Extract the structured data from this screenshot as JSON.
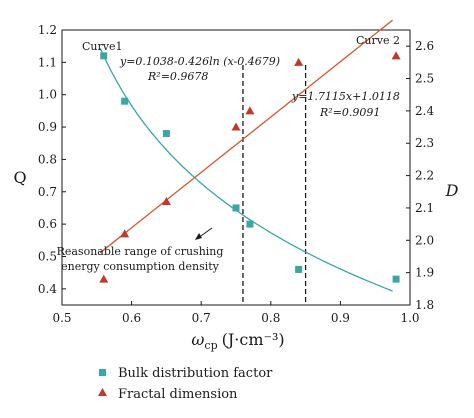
{
  "chart_data": {
    "type": "scatter",
    "xlabel": "ω",
    "xlabel_sub": "cp",
    "xlabel_unit": "(J·cm⁻³)",
    "ylabel_left": "Q",
    "ylabel_right": "D",
    "xlim": [
      0.5,
      1.0
    ],
    "ylim_left": [
      0.35,
      1.2
    ],
    "ylim_right": [
      1.8,
      2.65
    ],
    "x_ticks": [
      "0.5",
      "0.6",
      "0.7",
      "0.8",
      "0.9",
      "1.0"
    ],
    "y_left_ticks": [
      "0.4",
      "0.5",
      "0.6",
      "0.7",
      "0.8",
      "0.9",
      "1.0",
      "1.1",
      "1.2"
    ],
    "y_right_ticks": [
      "1.8",
      "1.9",
      "2.0",
      "2.1",
      "2.2",
      "2.3",
      "2.4",
      "2.5",
      "2.6"
    ],
    "grid": false,
    "series": [
      {
        "name": "Bulk distribution factor",
        "axis": "left",
        "marker": "square",
        "color": "#3aa7a3",
        "x": [
          0.56,
          0.59,
          0.65,
          0.75,
          0.77,
          0.84,
          0.98
        ],
        "y": [
          1.12,
          0.98,
          0.88,
          0.65,
          0.6,
          0.46,
          0.43
        ]
      },
      {
        "name": "Fractal dimension",
        "axis": "right",
        "marker": "triangle",
        "color": "#c0392b",
        "x": [
          0.56,
          0.59,
          0.65,
          0.75,
          0.77,
          0.84,
          0.98
        ],
        "y": [
          1.88,
          2.02,
          2.12,
          2.35,
          2.4,
          2.55,
          2.57
        ]
      }
    ],
    "fit_curves": [
      {
        "label": "Curve1",
        "color": "#3aa7a3",
        "axis": "left",
        "equation": "y=0.1038-0.426ln (x-0.4679)",
        "r2": "R²=0.9678",
        "x_range": [
          0.555,
          0.975
        ]
      },
      {
        "label": "Curve 2",
        "color": "#d4552b",
        "axis": "right",
        "equation": "y=1.7115x+1.0118",
        "r2": "R²=0.9091",
        "slope": 1.7115,
        "intercept": 1.0118,
        "x_range": [
          0.555,
          0.975
        ]
      }
    ],
    "reference_lines": [
      0.76,
      0.85
    ],
    "annotation": {
      "line1": "Reasonable range of crushing",
      "line2": "energy consumption density"
    }
  }
}
